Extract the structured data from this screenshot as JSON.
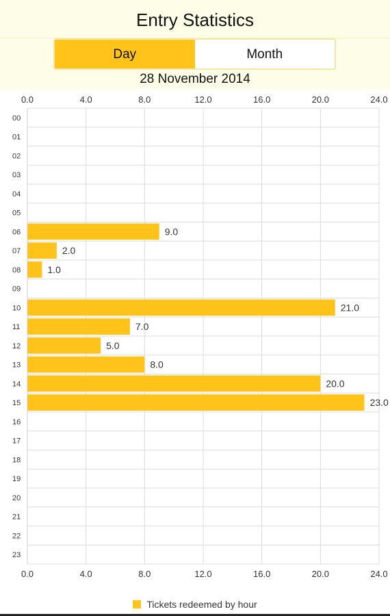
{
  "app": {
    "title": "Entry Statistics",
    "tabs": [
      {
        "label": "Day",
        "active": true
      },
      {
        "label": "Month",
        "active": false
      }
    ],
    "date": "28 November 2014"
  },
  "colors": {
    "bar": "#ffc31a",
    "header_bg": "#fefde8",
    "grid": "#dcdcdc"
  },
  "chart_data": {
    "type": "bar",
    "orientation": "horizontal",
    "categories": [
      "00",
      "01",
      "02",
      "03",
      "04",
      "05",
      "06",
      "07",
      "08",
      "09",
      "10",
      "11",
      "12",
      "13",
      "14",
      "15",
      "16",
      "17",
      "18",
      "19",
      "20",
      "21",
      "22",
      "23"
    ],
    "series": [
      {
        "name": "Tickets redeemed by hour",
        "values": [
          0,
          0,
          0,
          0,
          0,
          0,
          9,
          2,
          1,
          0,
          21,
          7,
          5,
          8,
          20,
          23,
          0,
          0,
          0,
          0,
          0,
          0,
          0,
          0
        ]
      }
    ],
    "value_labels": [
      "",
      "",
      "",
      "",
      "",
      "",
      "9.0",
      "2.0",
      "1.0",
      "",
      "21.0",
      "7.0",
      "5.0",
      "8.0",
      "20.0",
      "23.0",
      "",
      "",
      "",
      "",
      "",
      "",
      "",
      ""
    ],
    "xlim": [
      0,
      24
    ],
    "xticks": [
      "0.0",
      "4.0",
      "8.0",
      "12.0",
      "16.0",
      "20.0",
      "24.0"
    ],
    "grid": true,
    "legend": "bottom-center"
  }
}
